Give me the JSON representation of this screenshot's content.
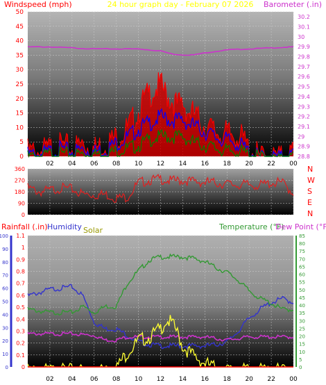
{
  "header": {
    "left_label": "Windspeed (mph)",
    "title": "24 hour graph day - February 07 2026",
    "right_label": "Barometer (.in)"
  },
  "middle": {
    "directions": [
      "N",
      "W",
      "S",
      "E",
      "N"
    ]
  },
  "bottom_labels": {
    "rainfall": "Rainfall (.in)",
    "humidity": "Humidity",
    "solar": "Solar",
    "temperature": "Temperature (°F)",
    "dewpoint": "Dew Point (°F)"
  },
  "colors": {
    "wind_gust": "#ff0000",
    "wind_avg": "#0000ff",
    "wind_low": "#008000",
    "barometer": "#cc33cc",
    "direction": "#e02020",
    "humidity": "#3333cc",
    "temperature": "#339933",
    "dewpoint": "#cc33cc",
    "solar": "#ffff33",
    "rainfall": "#ff0000",
    "title": "#ffff00",
    "left_label": "#ff0000",
    "right_label": "#cc33cc"
  },
  "chart_data": [
    {
      "type": "line",
      "name": "wind-barometer",
      "x_ticks": [
        "02",
        "04",
        "06",
        "08",
        "10",
        "12",
        "14",
        "16",
        "18",
        "20",
        "22",
        "00"
      ],
      "left_axis": {
        "ticks": [
          0,
          5,
          10,
          15,
          20,
          25,
          30,
          35,
          40,
          45,
          50
        ],
        "ylim": [
          0,
          50
        ]
      },
      "right_axis": {
        "ticks": [
          "28.8",
          "28.9",
          "29",
          "29.1",
          "29.2",
          "29.3",
          "29.4",
          "29.5",
          "29.6",
          "29.7",
          "29.8",
          "29.9",
          "30",
          "30.1",
          "30.2"
        ],
        "ylim": [
          28.8,
          30.25
        ]
      },
      "series": [
        {
          "key": "gust",
          "x": [
            0,
            1,
            2,
            3,
            4,
            5,
            6,
            7,
            8,
            9,
            10,
            10.5,
            11,
            11.5,
            12,
            12.5,
            13,
            13.5,
            14,
            14.5,
            15,
            15.5,
            16,
            17,
            18,
            19,
            19.5,
            20,
            21,
            22,
            23,
            24
          ],
          "values": [
            4,
            4,
            5,
            6,
            5,
            7,
            5,
            7,
            9,
            12,
            18,
            22,
            24,
            26,
            27,
            24,
            22,
            20,
            21,
            18,
            17,
            15,
            13,
            11,
            10,
            10,
            8,
            5,
            2,
            2,
            2,
            4
          ]
        },
        {
          "key": "avg",
          "x": [
            0,
            1,
            2,
            3,
            4,
            5,
            6,
            7,
            8,
            9,
            10,
            11,
            12,
            13,
            14,
            15,
            16,
            17,
            18,
            19,
            20,
            21,
            22,
            23,
            24
          ],
          "values": [
            2,
            2,
            3,
            4,
            3,
            4,
            3,
            4,
            6,
            8,
            11,
            13,
            15,
            14,
            14,
            12,
            10,
            8,
            7,
            6,
            3,
            1,
            1,
            1,
            2
          ]
        },
        {
          "key": "low",
          "x": [
            0,
            1,
            2,
            3,
            4,
            5,
            6,
            7,
            8,
            9,
            10,
            11,
            12,
            13,
            14,
            15,
            16,
            17,
            18,
            19,
            20,
            21,
            22,
            23,
            24
          ],
          "values": [
            1,
            1,
            2,
            2,
            2,
            2,
            2,
            2,
            3,
            4,
            5,
            7,
            8,
            8,
            8,
            6,
            5,
            4,
            3,
            3,
            2,
            1,
            0,
            0,
            1
          ]
        },
        {
          "key": "baro",
          "x": [
            0,
            2,
            4,
            6,
            8,
            10,
            12,
            13,
            14,
            15,
            16,
            18,
            20,
            22,
            24
          ],
          "values": [
            29.9,
            29.9,
            29.89,
            29.88,
            29.88,
            29.88,
            29.86,
            29.83,
            29.82,
            29.82,
            29.84,
            29.87,
            29.88,
            29.89,
            29.9
          ]
        }
      ]
    },
    {
      "type": "line",
      "name": "wind-direction",
      "x_ticks": [
        "02",
        "04",
        "06",
        "08",
        "10",
        "12",
        "14",
        "16",
        "18",
        "20",
        "22",
        "00"
      ],
      "left_axis": {
        "ticks": [
          0,
          90,
          180,
          270,
          360
        ],
        "ylim": [
          0,
          360
        ]
      },
      "series": [
        {
          "key": "dir",
          "x": [
            0,
            1,
            2,
            3,
            4,
            5,
            6,
            7,
            8,
            9,
            10,
            11,
            12,
            13,
            14,
            15,
            16,
            17,
            18,
            19,
            20,
            21,
            22,
            23,
            24
          ],
          "values": [
            230,
            200,
            210,
            230,
            220,
            180,
            175,
            180,
            150,
            160,
            270,
            290,
            300,
            285,
            290,
            280,
            275,
            270,
            260,
            255,
            255,
            250,
            270,
            270,
            190
          ]
        }
      ]
    },
    {
      "type": "line",
      "name": "temperature-humidity",
      "x_ticks": [
        "02",
        "04",
        "06",
        "08",
        "10",
        "12",
        "14",
        "16",
        "18",
        "20",
        "22",
        "00"
      ],
      "axes": {
        "humidity": {
          "ticks": [
            0,
            10,
            20,
            30,
            40,
            50,
            60,
            70,
            80,
            90,
            100
          ],
          "ylim": [
            0,
            100
          ]
        },
        "rainfall": {
          "ticks": [
            "0",
            "0.1",
            "0.2",
            "0.3",
            "0.4",
            "0.5",
            "0.6",
            "0.7",
            "0.8",
            "0.9",
            "1",
            "1.1"
          ],
          "ylim": [
            0,
            1.1
          ]
        },
        "temperature": {
          "ticks": [
            0,
            5,
            10,
            15,
            20,
            25,
            30,
            35,
            40,
            45,
            50,
            55,
            60,
            65,
            70,
            75,
            80,
            85
          ],
          "ylim": [
            0,
            85
          ]
        }
      },
      "series": [
        {
          "key": "humidity",
          "x": [
            0,
            2,
            4,
            5,
            6,
            7,
            8,
            9,
            10,
            11,
            12,
            13,
            14,
            15,
            16,
            17,
            18,
            19,
            20,
            21,
            22,
            23,
            24
          ],
          "values": [
            55,
            60,
            62,
            55,
            35,
            30,
            30,
            25,
            20,
            18,
            17,
            17,
            17,
            17,
            17,
            18,
            20,
            28,
            38,
            45,
            50,
            53,
            50
          ]
        },
        {
          "key": "temperature",
          "x": [
            0,
            2,
            4,
            5,
            6,
            7,
            8,
            9,
            10,
            11,
            12,
            13,
            14,
            15,
            16,
            17,
            18,
            19,
            20,
            21,
            22,
            23,
            24
          ],
          "values": [
            38,
            36,
            36,
            40,
            36,
            40,
            40,
            55,
            63,
            70,
            72,
            72,
            72,
            71,
            69,
            65,
            62,
            57,
            50,
            45,
            42,
            38,
            38
          ]
        },
        {
          "key": "dewpoint",
          "x": [
            0,
            2,
            4,
            6,
            7,
            8,
            9,
            10,
            12,
            14,
            16,
            18,
            20,
            22,
            24
          ],
          "values": [
            22,
            22,
            22,
            21,
            18,
            18,
            20,
            20,
            20,
            20,
            20,
            18,
            20,
            20,
            20
          ]
        },
        {
          "key": "solar",
          "x": [
            0,
            7,
            8,
            9,
            10,
            11,
            12,
            12.5,
            13,
            13.5,
            14,
            15,
            16,
            17,
            18,
            24
          ],
          "values": [
            0,
            0,
            0.02,
            0.15,
            0.25,
            0.28,
            0.35,
            0.42,
            0.4,
            0.32,
            0.2,
            0.12,
            0.06,
            0.02,
            0,
            0
          ]
        },
        {
          "key": "rain",
          "x": [
            0,
            24
          ],
          "values": [
            0,
            0
          ]
        }
      ]
    }
  ]
}
